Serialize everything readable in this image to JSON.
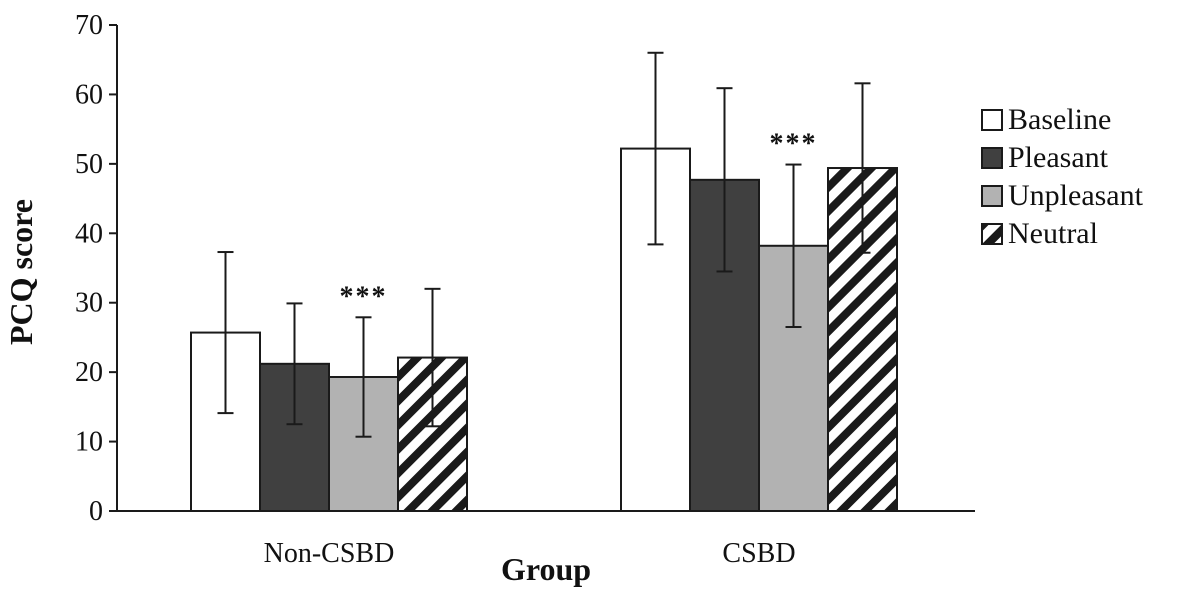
{
  "chart_data": {
    "type": "bar",
    "xlabel": "Group",
    "ylabel": "PCQ score",
    "ylim": [
      0,
      70
    ],
    "yticks": [
      0,
      10,
      20,
      30,
      40,
      50,
      60,
      70
    ],
    "categories": [
      "Non-CSBD",
      "CSBD"
    ],
    "series": [
      {
        "name": "Baseline",
        "pattern": "white",
        "values": [
          25.7,
          52.2
        ],
        "errors": [
          11.6,
          13.8
        ]
      },
      {
        "name": "Pleasant",
        "pattern": "dark",
        "values": [
          21.2,
          47.7
        ],
        "errors": [
          8.7,
          13.2
        ]
      },
      {
        "name": "Unpleasant",
        "pattern": "gray",
        "values": [
          19.3,
          38.2
        ],
        "errors": [
          8.6,
          11.7
        ]
      },
      {
        "name": "Neutral",
        "pattern": "hatch",
        "values": [
          22.1,
          49.4
        ],
        "errors": [
          9.9,
          12.2
        ]
      }
    ],
    "annotations": [
      {
        "text": "***",
        "category": "Non-CSBD",
        "series": "Unpleasant"
      },
      {
        "text": "***",
        "category": "CSBD",
        "series": "Unpleasant"
      }
    ],
    "legend": "right",
    "grid": false
  },
  "colors": {
    "white": "#ffffff",
    "dark": "#404040",
    "gray": "#b2b2b2",
    "outline": "#1a1a1a"
  }
}
